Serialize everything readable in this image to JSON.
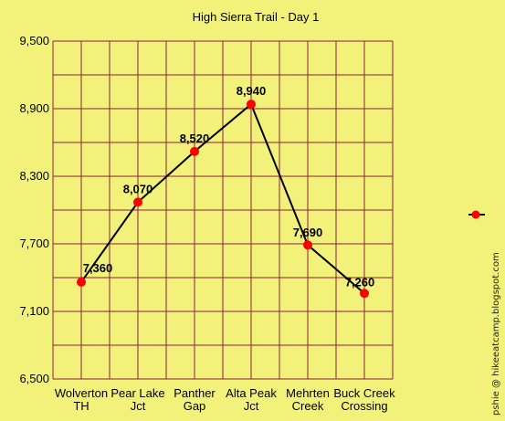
{
  "chart_data": {
    "type": "line",
    "title": "High Sierra Trail - Day 1",
    "xlabel": "",
    "ylabel": "",
    "categories": [
      [
        "Wolverton",
        "TH"
      ],
      [
        "Pear Lake",
        "Jct"
      ],
      [
        "Panther",
        "Gap"
      ],
      [
        "Alta Peak",
        "Jct"
      ],
      [
        "Mehrten",
        "Creek"
      ],
      [
        "Buck Creek",
        "Crossing"
      ]
    ],
    "series": [
      {
        "values": [
          7360,
          8070,
          8520,
          8940,
          7690,
          7260
        ],
        "data_labels": [
          "7,360",
          "8,070",
          "8,520",
          "8,940",
          "7,690",
          "7,260"
        ]
      }
    ],
    "ylim": [
      6500,
      9500
    ],
    "yticks": [
      6500,
      7100,
      7700,
      8300,
      8900,
      9500
    ],
    "ytick_labels": [
      "6,500",
      "7,100",
      "7,700",
      "8,300",
      "8,900",
      "9,500"
    ],
    "minor_gridlines_per_major": 2,
    "grid": true,
    "legend": "right (marker only, no text)",
    "colors": {
      "background": "#f2f27a",
      "grid": "#8b2340",
      "line": "#000000",
      "marker": "#ff0000"
    }
  },
  "credit_text": "pshie @ hikeeatcamp.blogspot.com"
}
